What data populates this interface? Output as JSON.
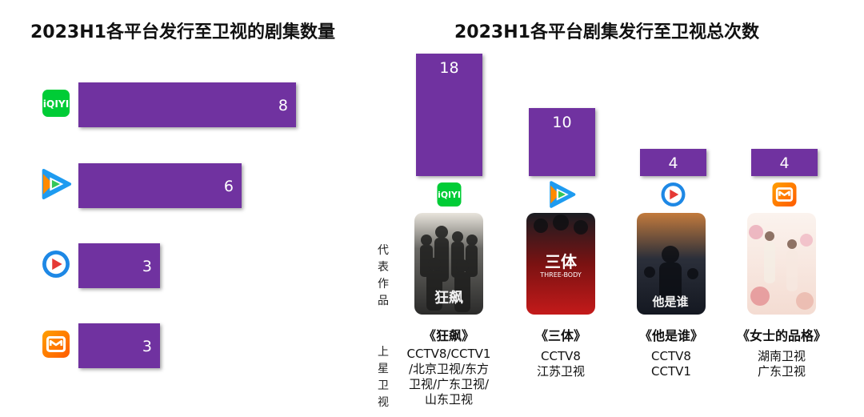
{
  "chart_data": [
    {
      "type": "bar",
      "orientation": "horizontal",
      "title": "2023H1各平台发行至卫视的剧集数量",
      "categories": [
        "iQIYI",
        "Tencent Video",
        "Youku",
        "Mango TV"
      ],
      "values": [
        8,
        6,
        3,
        3
      ],
      "xlim": [
        0,
        8
      ],
      "bar_color": "#7030A0",
      "grid": false,
      "legend": false
    },
    {
      "type": "bar",
      "orientation": "vertical",
      "title": "2023H1各平台剧集发行至卫视总次数",
      "categories": [
        "iQIYI",
        "Tencent Video",
        "Youku",
        "Mango TV"
      ],
      "values": [
        18,
        10,
        4,
        4
      ],
      "ylim": [
        0,
        18
      ],
      "bar_color": "#7030A0",
      "grid": false,
      "legend": false
    }
  ],
  "platform_icons": [
    "iqiyi-icon",
    "tencent-video-icon",
    "youku-icon",
    "mango-tv-icon"
  ],
  "iqiyi_logo_text": "iQIYI",
  "labels": {
    "representative_works": "代表作品",
    "satellite_channels": "上星卫视"
  },
  "works": [
    {
      "title": "《狂飙》",
      "poster_text": "狂飙",
      "channels": [
        "CCTV8/CCTV1",
        "/北京卫视/东方",
        "卫视/广东卫视/",
        "山东卫视"
      ]
    },
    {
      "title": "《三体》",
      "poster_text": "三体",
      "poster_subtext": "THREE-BODY",
      "channels": [
        "CCTV8",
        "江苏卫视"
      ]
    },
    {
      "title": "《他是谁》",
      "poster_text": "他是谁",
      "channels": [
        "CCTV8",
        "CCTV1"
      ]
    },
    {
      "title": "《女士的品格》",
      "poster_text": "",
      "channels": [
        "湖南卫视",
        "广东卫视"
      ]
    }
  ],
  "colors": {
    "bar": "#7030A0",
    "iqiyi": "#00CC36",
    "tencent_blue": "#1E9BF0",
    "tencent_orange": "#FF8A00",
    "youku_blue": "#1E88E5",
    "mango_orange": "#FF7A00"
  }
}
